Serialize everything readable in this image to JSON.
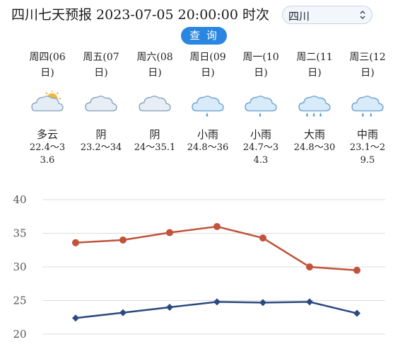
{
  "header": {
    "title": "四川七天预报 2023-07-05 20:00:00 时次",
    "region_value": "四川",
    "query_label": "查 询"
  },
  "days": [
    {
      "name": "周四(06日)",
      "weather": "多云",
      "temp": "22.4～33.6",
      "icon": "partly-cloudy-icon"
    },
    {
      "name": "周五(07日)",
      "weather": "阴",
      "temp": "23.2～34",
      "icon": "cloudy-icon"
    },
    {
      "name": "周六(08日)",
      "weather": "阴",
      "temp": "24～35.1",
      "icon": "cloudy-icon"
    },
    {
      "name": "周日(09日)",
      "weather": "小雨",
      "temp": "24.8～36",
      "icon": "light-rain-icon"
    },
    {
      "name": "周一(10日)",
      "weather": "小雨",
      "temp": "24.7～34.3",
      "icon": "light-rain-icon"
    },
    {
      "name": "周二(11日)",
      "weather": "大雨",
      "temp": "24.8～30",
      "icon": "heavy-rain-icon"
    },
    {
      "name": "周三(12日)",
      "weather": "中雨",
      "temp": "23.1～29.5",
      "icon": "moderate-rain-icon"
    }
  ],
  "colors": {
    "accent": "#2a86e0",
    "high_line": "#c0533a",
    "low_line": "#2b4a80",
    "grid": "#dcdcdc"
  },
  "chart_data": {
    "type": "line",
    "title": "",
    "xlabel": "",
    "ylabel": "",
    "ylim": [
      20,
      40
    ],
    "yticks": [
      20,
      25,
      30,
      35,
      40
    ],
    "grid": true,
    "categories": [
      "周四(06日)",
      "周五(07日)",
      "周六(08日)",
      "周日(09日)",
      "周一(10日)",
      "周二(11日)",
      "周三(12日)"
    ],
    "series": [
      {
        "values": [
          33.6,
          34,
          35.1,
          36,
          34.3,
          30,
          29.5
        ],
        "color": "#c0533a",
        "marker": "circle"
      },
      {
        "values": [
          22.4,
          23.2,
          24,
          24.8,
          24.7,
          24.8,
          23.1
        ],
        "color": "#2b4a80",
        "marker": "diamond"
      }
    ]
  }
}
